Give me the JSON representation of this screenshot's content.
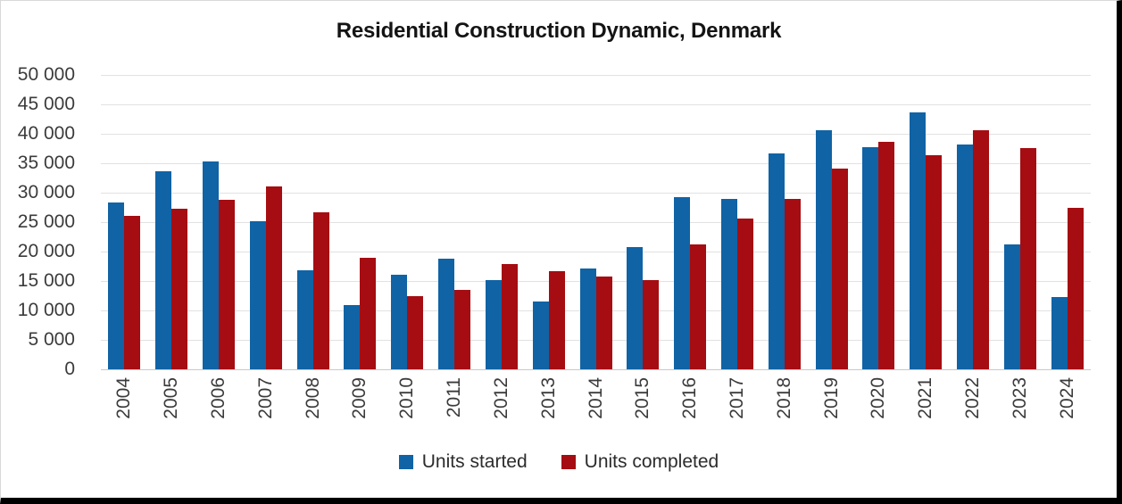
{
  "chart_data": {
    "type": "bar",
    "title": "Residential Construction Dynamic, Denmark",
    "categories": [
      "2004",
      "2005",
      "2006",
      "2007",
      "2008",
      "2009",
      "2010",
      "2011",
      "2012",
      "2013",
      "2014",
      "2015",
      "2016",
      "2017",
      "2018",
      "2019",
      "2020",
      "2021",
      "2022",
      "2023",
      "2024"
    ],
    "series": [
      {
        "name": "Units started",
        "color": "#1063a5",
        "values": [
          28400,
          33700,
          35300,
          25200,
          16800,
          10900,
          16100,
          18800,
          15100,
          11500,
          17100,
          20700,
          29300,
          29000,
          36700,
          40600,
          37800,
          43600,
          38200,
          21200,
          12200
        ]
      },
      {
        "name": "Units completed",
        "color": "#a50d12",
        "values": [
          26100,
          27200,
          28800,
          31100,
          26700,
          18900,
          12400,
          13500,
          17900,
          16700,
          15800,
          15100,
          21200,
          25600,
          28900,
          34100,
          38700,
          36400,
          40600,
          37600,
          27400
        ]
      }
    ],
    "xlabel": "",
    "ylabel": "",
    "ylim": [
      0,
      50000
    ],
    "y_tick_step": 5000,
    "grid": true,
    "legend_position": "bottom"
  },
  "y_axis": {
    "tick_labels": [
      "50 000",
      "45 000",
      "40 000",
      "35 000",
      "30 000",
      "25 000",
      "20 000",
      "15 000",
      "10 000",
      "5 000",
      "0"
    ]
  },
  "colors": {
    "grid_line": "#e2e2e2",
    "axis_line": "#c9c9c9",
    "frame_border": "#000000",
    "title_text": "#141414",
    "tick_text": "#3b3b3b"
  }
}
